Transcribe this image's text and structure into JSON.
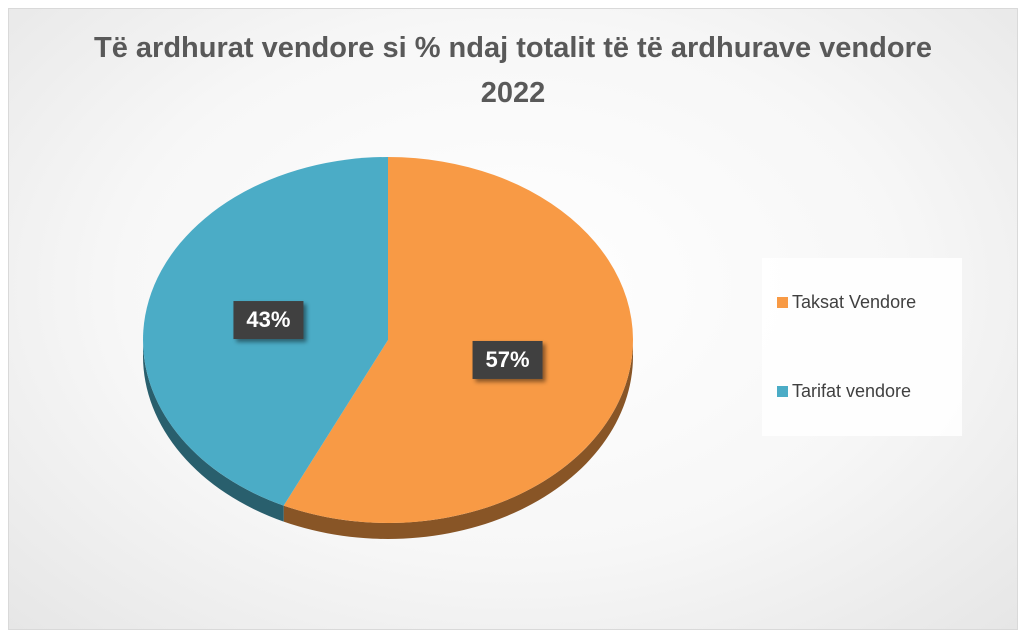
{
  "chart_data": {
    "type": "pie",
    "title": "Të ardhurat vendore si % ndaj totalit të të ardhurave vendore 2022",
    "categories": [
      "Taksat Vendore",
      "Tarifat vendore"
    ],
    "values": [
      57,
      43
    ],
    "value_labels": [
      "57%",
      "43%"
    ],
    "colors": [
      "#f89a45",
      "#4bacc6"
    ],
    "legend": "right"
  }
}
